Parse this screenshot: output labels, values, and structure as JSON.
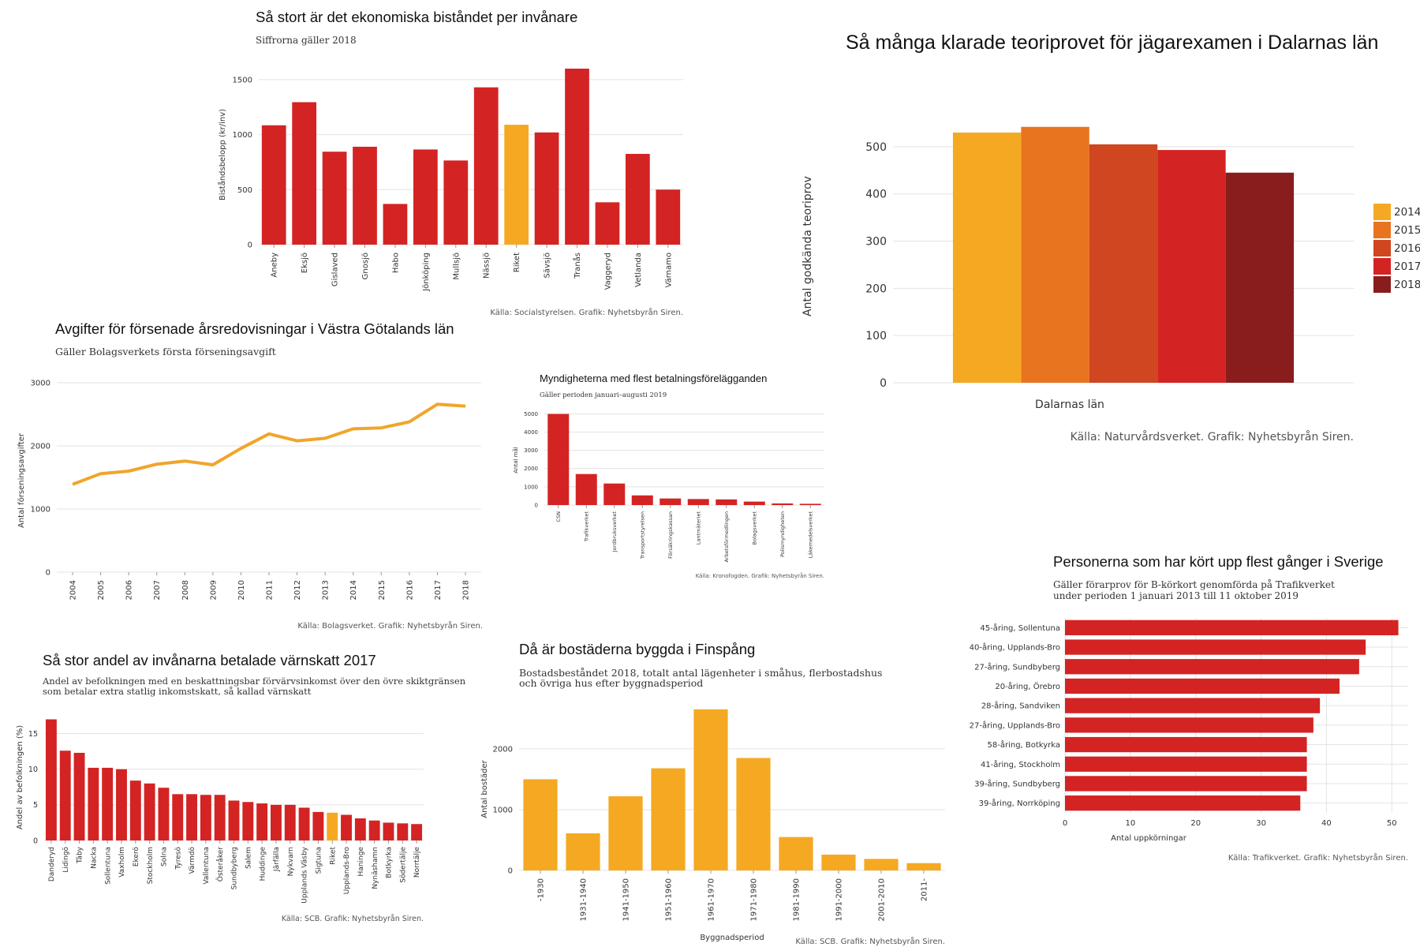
{
  "colors": {
    "red": "#d42323",
    "orange": "#f5a922",
    "line": "#f0a52b"
  },
  "chart_data": [
    {
      "id": "c1",
      "type": "bar",
      "title": "Så stort är det ekonomiska biståndet per invånare",
      "subtitle": "Siffrorna gäller 2018",
      "ylabel": "Biståndsbelopp (kr/inv)",
      "source": "Källa: Socialstyrelsen. Grafik: Nyhetsbyrån Siren.",
      "categories": [
        "Aneby",
        "Eksjö",
        "Gislaved",
        "Gnosjö",
        "Habo",
        "Jönköping",
        "Mullsjö",
        "Nässjö",
        "Riket",
        "Sävsjö",
        "Tranås",
        "Vaggeryd",
        "Vetlanda",
        "Värnamo"
      ],
      "values": [
        1085,
        1295,
        845,
        890,
        370,
        865,
        765,
        1430,
        1090,
        1020,
        1600,
        385,
        825,
        500
      ],
      "highlight": [
        "Riket"
      ],
      "yticks": [
        0,
        500,
        1000,
        1500
      ],
      "ylim": [
        0,
        1650
      ],
      "grid": true
    },
    {
      "id": "c2",
      "type": "bar",
      "title": "Så många klarade teoriprovet för jägarexamen i Dalarnas län",
      "ylabel": "Antal godkända teoriprov",
      "xlabel": "Dalarnas län",
      "source": "Källa: Naturvårdsverket. Grafik: Nyhetsbyrån Siren.",
      "series": [
        {
          "name": "2014",
          "color": "#f5a922",
          "values": [
            530
          ]
        },
        {
          "name": "2015",
          "color": "#e8741f",
          "values": [
            542
          ]
        },
        {
          "name": "2016",
          "color": "#cf4620",
          "values": [
            505
          ]
        },
        {
          "name": "2017",
          "color": "#d42323",
          "values": [
            493
          ]
        },
        {
          "name": "2018",
          "color": "#891c1c",
          "values": [
            445
          ]
        }
      ],
      "yticks": [
        0,
        100,
        200,
        300,
        400,
        500
      ],
      "ylim": [
        0,
        560
      ],
      "legend": "right",
      "grid": true
    },
    {
      "id": "c3",
      "type": "line",
      "title": "Avgifter för försenade årsredovisningar i Västra Götalands län",
      "subtitle": "Gäller Bolagsverkets första förseningsavgift",
      "ylabel": "Antal förseningsavgifter",
      "source": "Källa: Bolagsverket. Grafik: Nyhetsbyrån Siren.",
      "x": [
        "2004",
        "2005",
        "2006",
        "2007",
        "2008",
        "2009",
        "2010",
        "2011",
        "2012",
        "2013",
        "2014",
        "2015",
        "2016",
        "2017",
        "2018"
      ],
      "values": [
        1390,
        1560,
        1600,
        1710,
        1760,
        1700,
        1960,
        2190,
        2080,
        2120,
        2270,
        2285,
        2380,
        2660,
        2630
      ],
      "yticks": [
        0,
        1000,
        2000,
        3000
      ],
      "ylim": [
        0,
        3000
      ],
      "grid": true
    },
    {
      "id": "c4",
      "type": "bar",
      "title": "Myndigheterna med flest betalningsförelägganden",
      "subtitle": "Gäller perioden januari–augusti 2019",
      "ylabel": "Antal mål",
      "source": "Källa: Kronofogden. Grafik: Nyhetsbyrån Siren.",
      "categories": [
        "CSN",
        "Trafikverket",
        "Jordbruksverket",
        "Transportstyrelsen",
        "Försäkringskassan",
        "Lantmäteriet",
        "Arbetsförmedlingen",
        "Bolagsverket",
        "Polismyndigheten",
        "Läkemedelsverket"
      ],
      "values": [
        4990,
        1700,
        1180,
        530,
        360,
        330,
        310,
        190,
        90,
        70
      ],
      "yticks": [
        0,
        1000,
        2000,
        3000,
        4000,
        5000
      ],
      "ylim": [
        0,
        5100
      ],
      "grid": true
    },
    {
      "id": "c5",
      "type": "bar",
      "orientation": "horizontal",
      "title": "Personerna som har kört upp flest gånger i Sverige",
      "subtitle": [
        "Gäller förarprov för B-körkort genomförda på Trafikverket",
        "under perioden 1 januari 2013 till 11 oktober 2019"
      ],
      "xlabel": "Antal uppkörningar",
      "source": "Källa: Trafikverket. Grafik: Nyhetsbyrån Siren.",
      "categories": [
        "45-åring, Sollentuna",
        "40-åring, Upplands-Bro",
        "27-åring, Sundbyberg",
        "20-åring, Örebro",
        "28-åring, Sandviken",
        "27-åring, Upplands-Bro",
        "58-åring, Botkyrka",
        "41-åring, Stockholm",
        "39-åring, Sundbyberg",
        "39-åring, Norrköping"
      ],
      "values": [
        51,
        46,
        45,
        42,
        39,
        38,
        37,
        37,
        37,
        36
      ],
      "xticks": [
        0,
        10,
        20,
        30,
        40,
        50
      ],
      "xlim": [
        0,
        52.5
      ],
      "grid": true
    },
    {
      "id": "c6",
      "type": "bar",
      "title": "Så stor andel av invånarna betalade värnskatt 2017",
      "subtitle": [
        "Andel av befolkningen med en beskattningsbar förvärvsinkomst över den övre skiktgränsen",
        "som betalar extra statlig inkomstskatt, så kallad värnskatt"
      ],
      "ylabel": "Andel av befolkningen (%)",
      "source": "Källa: SCB. Grafik: Nyhetsbyrån Siren.",
      "categories": [
        "Danderyd",
        "Lidingö",
        "Täby",
        "Nacka",
        "Sollentuna",
        "Vaxholm",
        "Ekerö",
        "Stockholm",
        "Solna",
        "Tyresö",
        "Värmdö",
        "Vallentuna",
        "Österåker",
        "Sundbyberg",
        "Salem",
        "Huddinge",
        "Järfälla",
        "Nykvarn",
        "Upplands Väsby",
        "Sigtuna",
        "Riket",
        "Upplands-Bro",
        "Haninge",
        "Nynäshamn",
        "Botkyrka",
        "Södertälje",
        "Norrtälje"
      ],
      "values": [
        17.0,
        12.6,
        12.3,
        10.2,
        10.2,
        10.0,
        8.4,
        8.0,
        7.4,
        6.5,
        6.5,
        6.4,
        6.4,
        5.6,
        5.4,
        5.2,
        5.0,
        5.0,
        4.6,
        4.0,
        3.9,
        3.6,
        3.1,
        2.8,
        2.5,
        2.4,
        2.3
      ],
      "highlight": [
        "Riket"
      ],
      "yticks": [
        0,
        5,
        10,
        15
      ],
      "ylim": [
        0,
        17.5
      ],
      "grid": true
    },
    {
      "id": "c7",
      "type": "bar",
      "title": "Då är bostäderna byggda i Finspång",
      "subtitle": [
        "Bostadsbeståndet 2018, totalt antal lägenheter i småhus, flerbostadshus",
        "och övriga hus efter byggnadsperiod"
      ],
      "ylabel": "Antal bostäder",
      "xlabel": "Byggnadsperiod",
      "source": "Källa: SCB. Grafik: Nyhetsbyrån Siren.",
      "categories": [
        "-1930",
        "1931-1940",
        "1941-1950",
        "1951-1960",
        "1961-1970",
        "1971-1980",
        "1981-1990",
        "1991-2000",
        "2001-2010",
        "2011-"
      ],
      "values": [
        1500,
        610,
        1220,
        1680,
        2650,
        1850,
        550,
        260,
        190,
        120
      ],
      "yticks": [
        0,
        1000,
        2000
      ],
      "ylim": [
        0,
        2700
      ],
      "grid": true
    }
  ]
}
